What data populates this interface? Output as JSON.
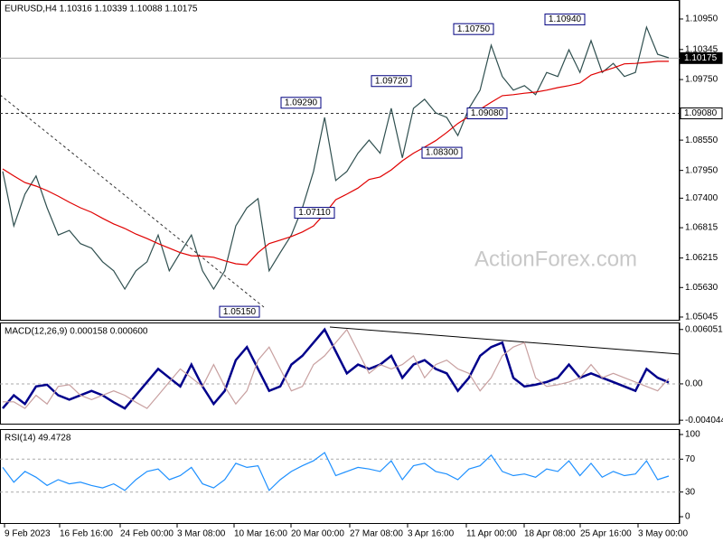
{
  "chart_data": [
    {
      "type": "line",
      "title": "EURUSD,H4  1.10316 1.10339 1.10088 1.10175",
      "ylim": [
        1.04973,
        1.11326
      ],
      "yticks": [
        {
          "value": 1.1095,
          "label": "1.10950"
        },
        {
          "value": 1.10345,
          "label": "1.10345"
        },
        {
          "value": 1.0975,
          "label": "1.09750"
        },
        {
          "value": 1.0855,
          "label": "1.08550"
        },
        {
          "value": 1.0795,
          "label": "1.07950"
        },
        {
          "value": 1.074,
          "label": "1.07400"
        },
        {
          "value": 1.06815,
          "label": "1.06815"
        },
        {
          "value": 1.06215,
          "label": "1.06215"
        },
        {
          "value": 1.0563,
          "label": "1.05630"
        },
        {
          "value": 1.05045,
          "label": "1.05045"
        }
      ],
      "series": [
        {
          "name": "Close",
          "color": "#2f4f4f",
          "values": [
            1.0793,
            1.0685,
            1.0748,
            1.0784,
            1.0721,
            1.0667,
            1.0676,
            1.065,
            1.0641,
            1.0614,
            1.0596,
            1.056,
            1.0596,
            1.0614,
            1.0667,
            1.0596,
            1.0632,
            1.0667,
            1.0596,
            1.056,
            1.0596,
            1.0685,
            1.0721,
            1.0739,
            1.0596,
            1.0632,
            1.0667,
            1.0721,
            1.0793,
            1.09,
            1.0775,
            1.0793,
            1.0829,
            1.0855,
            1.0829,
            1.0918,
            1.082,
            1.0918,
            1.0936,
            1.0909,
            1.09,
            1.0864,
            1.0918,
            1.0954,
            1.1043,
            1.0981,
            1.0954,
            1.0963,
            1.0945,
            1.0989,
            1.0981,
            1.1034,
            1.0989,
            1.1052,
            1.0989,
            1.1007,
            1.0981,
            1.0989,
            1.1079,
            1.1025,
            1.1018
          ]
        },
        {
          "name": "MA",
          "color": "#e00000",
          "values": [
            1.0798,
            1.0784,
            1.0771,
            1.0764,
            1.0755,
            1.0744,
            1.0732,
            1.0721,
            1.0712,
            1.07,
            1.0689,
            1.068,
            1.0669,
            1.066,
            1.065,
            1.0641,
            1.0632,
            1.0626,
            1.0625,
            1.0623,
            1.0616,
            1.061,
            1.0608,
            1.0632,
            1.065,
            1.0657,
            1.0664,
            1.0673,
            1.0685,
            1.0709,
            1.0737,
            1.0748,
            1.076,
            1.0777,
            1.0782,
            1.0796,
            1.0814,
            1.0829,
            1.0841,
            1.0854,
            1.087,
            1.0888,
            1.0902,
            1.0916,
            1.093,
            1.0943,
            1.0945,
            1.0948,
            1.095,
            1.0954,
            1.0959,
            1.0963,
            1.0968,
            1.0984,
            1.0991,
            1.0998,
            1.1006,
            1.1007,
            1.1009,
            1.1011,
            1.1011
          ]
        }
      ],
      "price_labels": [
        {
          "value": 1.0929,
          "label": "1.09290"
        },
        {
          "value": 1.0972,
          "label": "1.09720"
        },
        {
          "value": 1.1075,
          "label": "1.10750"
        },
        {
          "value": 1.1094,
          "label": "1.10940"
        },
        {
          "value": 1.0908,
          "label": "1.09080"
        },
        {
          "value": 1.083,
          "label": "1.08300"
        },
        {
          "value": 1.0711,
          "label": "1.07110"
        },
        {
          "value": 1.0515,
          "label": "1.05150"
        }
      ],
      "price_lines": [
        {
          "value": 1.10175,
          "label": "1.10175",
          "style": "solid"
        },
        {
          "value": 1.0908,
          "label": "1.09080",
          "style": "dashed"
        }
      ],
      "watermark": "ActionForex.com"
    },
    {
      "type": "line",
      "title": "MACD(12,26,9) 0.000158 0.000600",
      "ylim": [
        -0.00453,
        0.00683
      ],
      "yticks": [
        0.006051,
        {
          "value": 0,
          "label": "0.00"
        },
        -0.004044
      ],
      "levels": [
        0
      ],
      "series": [
        {
          "name": "MACD",
          "color": "#00008b",
          "values": [
            -0.00273,
            -0.00127,
            -0.00224,
            -0.00029,
            -0.0001,
            -0.00127,
            -0.00176,
            -0.00127,
            -0.00078,
            -0.00127,
            -0.00205,
            -0.00273,
            -0.00127,
            0.0002,
            0.00166,
            0.00068,
            -0.00029,
            0.00215,
            -0.00029,
            -0.00224,
            -0.00078,
            0.00264,
            0.0041,
            0.00166,
            -0.00078,
            -0.00029,
            0.00215,
            0.00312,
            0.00459,
            0.00605,
            0.00361,
            0.00117,
            0.00215,
            0.00166,
            0.00215,
            0.00312,
            0.00068,
            0.00215,
            0.00264,
            0.00166,
            0.00117,
            -0.00078,
            0.00068,
            0.00312,
            0.0041,
            0.00459,
            0.00068,
            -0.00029,
            -0.0001,
            0.0002,
            0.00068,
            0.00215,
            0.00068,
            0.00117,
            0.00068,
            0.0002,
            -0.00029,
            -0.00078,
            0.00166,
            0.00068,
            0.00016
          ]
        },
        {
          "name": "Signal",
          "color": "#c8a0a0",
          "values": [
            -0.002,
            -0.002,
            -0.00273,
            -0.00127,
            -0.00224,
            -0.00029,
            -0.0001,
            -0.00127,
            -0.00176,
            -0.00127,
            -0.00078,
            -0.00127,
            -0.00205,
            -0.00273,
            -0.00127,
            0.0002,
            0.00166,
            0.00068,
            -0.00029,
            0.00215,
            -0.00029,
            -0.00224,
            -0.00078,
            0.00264,
            0.0041,
            0.00166,
            -0.00078,
            -0.00029,
            0.00215,
            0.00312,
            0.00459,
            0.00605,
            0.00361,
            0.00117,
            0.00215,
            0.00166,
            0.00215,
            0.00312,
            0.00068,
            0.00215,
            0.00264,
            0.00166,
            0.00117,
            -0.00078,
            0.00068,
            0.00312,
            0.0041,
            0.00459,
            0.00068,
            -0.00029,
            -0.0001,
            0.0002,
            0.00068,
            0.00215,
            0.00068,
            0.00117,
            0.00068,
            0.0002,
            -0.00029,
            -0.00078,
            0.0006
          ]
        }
      ]
    },
    {
      "type": "line",
      "title": "RSI(14) 49.4728",
      "ylim": [
        -8.8,
        106.6
      ],
      "yticks": [
        100,
        70,
        30,
        0
      ],
      "levels": [
        70,
        30
      ],
      "series": [
        {
          "name": "RSI",
          "color": "#1e90ff",
          "values": [
            60,
            42,
            55,
            48,
            38,
            45,
            40,
            42,
            38,
            35,
            40,
            32,
            45,
            55,
            58,
            45,
            50,
            60,
            40,
            35,
            45,
            65,
            60,
            62,
            32,
            45,
            55,
            62,
            68,
            78,
            50,
            55,
            60,
            58,
            55,
            68,
            45,
            62,
            65,
            55,
            52,
            45,
            58,
            62,
            75,
            55,
            50,
            52,
            48,
            58,
            55,
            68,
            50,
            65,
            48,
            55,
            50,
            52,
            68,
            45,
            49.4728
          ]
        }
      ],
      "xtick_labels": [
        "9 Feb 2023",
        "16 Feb 16:00",
        "24 Feb 00:00",
        "3 Mar 08:00",
        "10 Mar 16:00",
        "20 Mar 00:00",
        "27 Mar 08:00",
        "3 Apr 16:00",
        "11 Apr 00:00",
        "18 Apr 08:00",
        "25 Apr 16:00",
        "3 May 00:00"
      ]
    }
  ]
}
